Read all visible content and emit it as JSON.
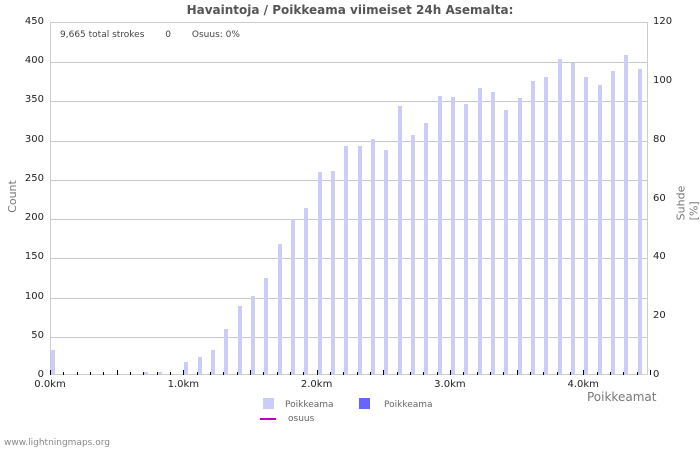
{
  "chart_data": {
    "type": "bar",
    "title": "Havaintoja / Poikkeama viimeiset 24h Asemalta:",
    "xlabel": "Poikkeamat",
    "ylabel": "Count",
    "ylabel_right": "Suhde [%]",
    "ylim": [
      0,
      450
    ],
    "ylim_right": [
      0,
      120
    ],
    "grid": true,
    "x_tick_labels": [
      "0.0km",
      "1.0km",
      "2.0km",
      "3.0km",
      "4.0km"
    ],
    "y_tick_labels": [
      "0",
      "50",
      "100",
      "150",
      "200",
      "250",
      "300",
      "350",
      "400",
      "450"
    ],
    "y_right_tick_labels": [
      "0",
      "20",
      "40",
      "60",
      "80",
      "100",
      "120"
    ],
    "categories": [
      "0.0",
      "0.1",
      "0.2",
      "0.3",
      "0.4",
      "0.5",
      "0.6",
      "0.7",
      "0.8",
      "0.9",
      "1.0",
      "1.1",
      "1.2",
      "1.3",
      "1.4",
      "1.5",
      "1.6",
      "1.7",
      "1.8",
      "1.9",
      "2.0",
      "2.1",
      "2.2",
      "2.3",
      "2.4",
      "2.5",
      "2.6",
      "2.7",
      "2.8",
      "2.9",
      "3.0",
      "3.1",
      "3.2",
      "3.3",
      "3.4",
      "3.5",
      "3.6",
      "3.7",
      "3.8",
      "3.9",
      "4.0",
      "4.1",
      "4.2",
      "4.3",
      "4.4"
    ],
    "series": [
      {
        "name": "Poikkeama",
        "color": "#ccccf8",
        "values": [
          30,
          0,
          0,
          0,
          0,
          0,
          0,
          2,
          2,
          0,
          15,
          22,
          30,
          58,
          87,
          100,
          123,
          166,
          197,
          211,
          258,
          259,
          291,
          291,
          300,
          286,
          342,
          305,
          320,
          355,
          353,
          344,
          365,
          360,
          337,
          352,
          374,
          378,
          401,
          397,
          379,
          368,
          386,
          407,
          389
        ]
      },
      {
        "name": "Poikkeama",
        "color": "#6666ff",
        "values": []
      },
      {
        "name": "osuus",
        "color": "#c000c0",
        "type": "line",
        "values": []
      }
    ],
    "legend_position": "bottom"
  },
  "info": {
    "total": "9,665 total strokes",
    "count": "0",
    "share": "Osuus: 0%"
  },
  "legend": {
    "item1": "Poikkeama",
    "item2": "Poikkeama",
    "item3": "osuus"
  },
  "footer": "www.lightningmaps.org"
}
